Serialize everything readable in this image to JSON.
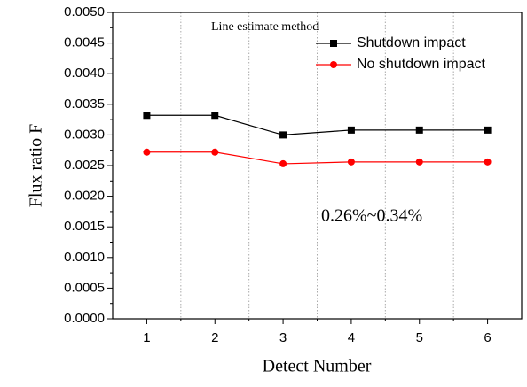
{
  "chart_data": {
    "type": "line",
    "annotations": [
      "Line estimate method",
      "0.26%~0.34%"
    ],
    "xlabel": "Detect Number",
    "ylabel": "Flux ratio F",
    "x": [
      1,
      2,
      3,
      4,
      5,
      6
    ],
    "series": [
      {
        "name": "Shutdown impact",
        "color": "#000000",
        "marker": "square",
        "values": [
          0.00332,
          0.00332,
          0.003,
          0.00308,
          0.00308,
          0.00308
        ]
      },
      {
        "name": "No shutdown impact",
        "color": "#ff0000",
        "marker": "circle",
        "values": [
          0.00272,
          0.00272,
          0.00253,
          0.00256,
          0.00256,
          0.00256
        ]
      }
    ],
    "xlim": [
      0.5,
      6.5
    ],
    "xticks": [
      1,
      2,
      3,
      4,
      5,
      6
    ],
    "ylim": [
      0,
      0.005
    ],
    "yticks": [
      {
        "value": 0,
        "label": "0.0000"
      },
      {
        "value": 0.0005,
        "label": "0.0005"
      },
      {
        "value": 0.001,
        "label": "0.0010"
      },
      {
        "value": 0.0015,
        "label": "0.0015"
      },
      {
        "value": 0.002,
        "label": "0.0020"
      },
      {
        "value": 0.0025,
        "label": "0.0025"
      },
      {
        "value": 0.003,
        "label": "0.0030"
      },
      {
        "value": 0.0035,
        "label": "0.0035"
      },
      {
        "value": 0.004,
        "label": "0.0040"
      },
      {
        "value": 0.0045,
        "label": "0.0045"
      },
      {
        "value": 0.005,
        "label": "0.0050"
      }
    ],
    "legend": "upper right",
    "xgrid_minor": true
  }
}
